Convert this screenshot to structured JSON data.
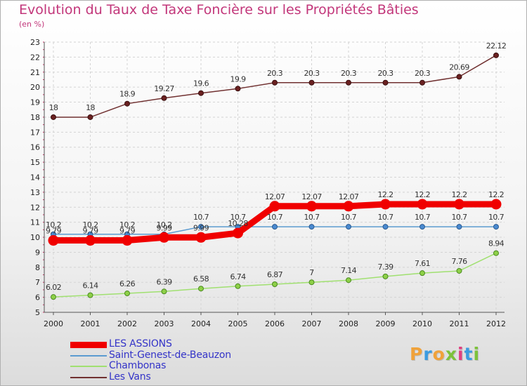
{
  "title": "Evolution du Taux de Taxe Foncière sur les Propriétés Bâties",
  "subtitle": "(en %)",
  "logo": {
    "letters": [
      "P",
      "r",
      "o",
      "x",
      "i",
      "t",
      "i"
    ],
    "colors": [
      "#f0a23a",
      "#3b9be0",
      "#f0a23a",
      "#7cc23a",
      "#e04080",
      "#3b9be0",
      "#7cc23a"
    ]
  },
  "chart_data": {
    "type": "line",
    "x": [
      "2000",
      "2001",
      "2002",
      "2003",
      "2004",
      "2005",
      "2006",
      "2007",
      "2008",
      "2009",
      "2010",
      "2011",
      "2012"
    ],
    "ylim": [
      5,
      23
    ],
    "yticks": [
      "5",
      "6",
      "7",
      "8",
      "9",
      "10",
      "11",
      "12",
      "13",
      "14",
      "15",
      "16",
      "17",
      "18",
      "19",
      "20",
      "21",
      "22",
      "23"
    ],
    "grid": true,
    "legend": "bottom-left",
    "series": [
      {
        "name": "LES ASSIONS",
        "color": "#f00000",
        "values": [
          9.79,
          9.79,
          9.79,
          9.99,
          9.99,
          10.28,
          12.07,
          12.07,
          12.07,
          12.2,
          12.2,
          12.2,
          12.2
        ],
        "labels": [
          "9.79",
          "9.79",
          "9.79",
          "9.99",
          "9.99",
          "10.28",
          "12.07",
          "12.07",
          "12.07",
          "12.2",
          "12.2",
          "12.2",
          "12.2"
        ]
      },
      {
        "name": "Saint-Genest-de-Beauzon",
        "color": "#5b9bd0",
        "values": [
          10.2,
          10.2,
          10.2,
          10.2,
          10.7,
          10.7,
          10.7,
          10.7,
          10.7,
          10.7,
          10.7,
          10.7,
          10.7
        ],
        "labels": [
          "10.2",
          "10.2",
          "10.2",
          "10.2",
          "10.7",
          "10.7",
          "10.7",
          "10.7",
          "10.7",
          "10.7",
          "10.7",
          "10.7",
          "10.7"
        ]
      },
      {
        "name": "Chambonas",
        "color": "#a0e070",
        "values": [
          6.02,
          6.14,
          6.26,
          6.39,
          6.58,
          6.74,
          6.87,
          7.0,
          7.14,
          7.39,
          7.61,
          7.76,
          8.94
        ],
        "labels": [
          "6.02",
          "6.14",
          "6.26",
          "6.39",
          "6.58",
          "6.74",
          "6.87",
          "7",
          "7.14",
          "7.39",
          "7.61",
          "7.76",
          "8.94"
        ]
      },
      {
        "name": "Les Vans",
        "color": "#703030",
        "values": [
          18,
          18,
          18.9,
          19.27,
          19.6,
          19.9,
          20.3,
          20.3,
          20.3,
          20.3,
          20.3,
          20.69,
          22.12
        ],
        "labels": [
          "18",
          "18",
          "18.9",
          "19.27",
          "19.6",
          "19.9",
          "20.3",
          "20.3",
          "20.3",
          "20.3",
          "20.3",
          "20.69",
          "22.12"
        ]
      }
    ]
  }
}
